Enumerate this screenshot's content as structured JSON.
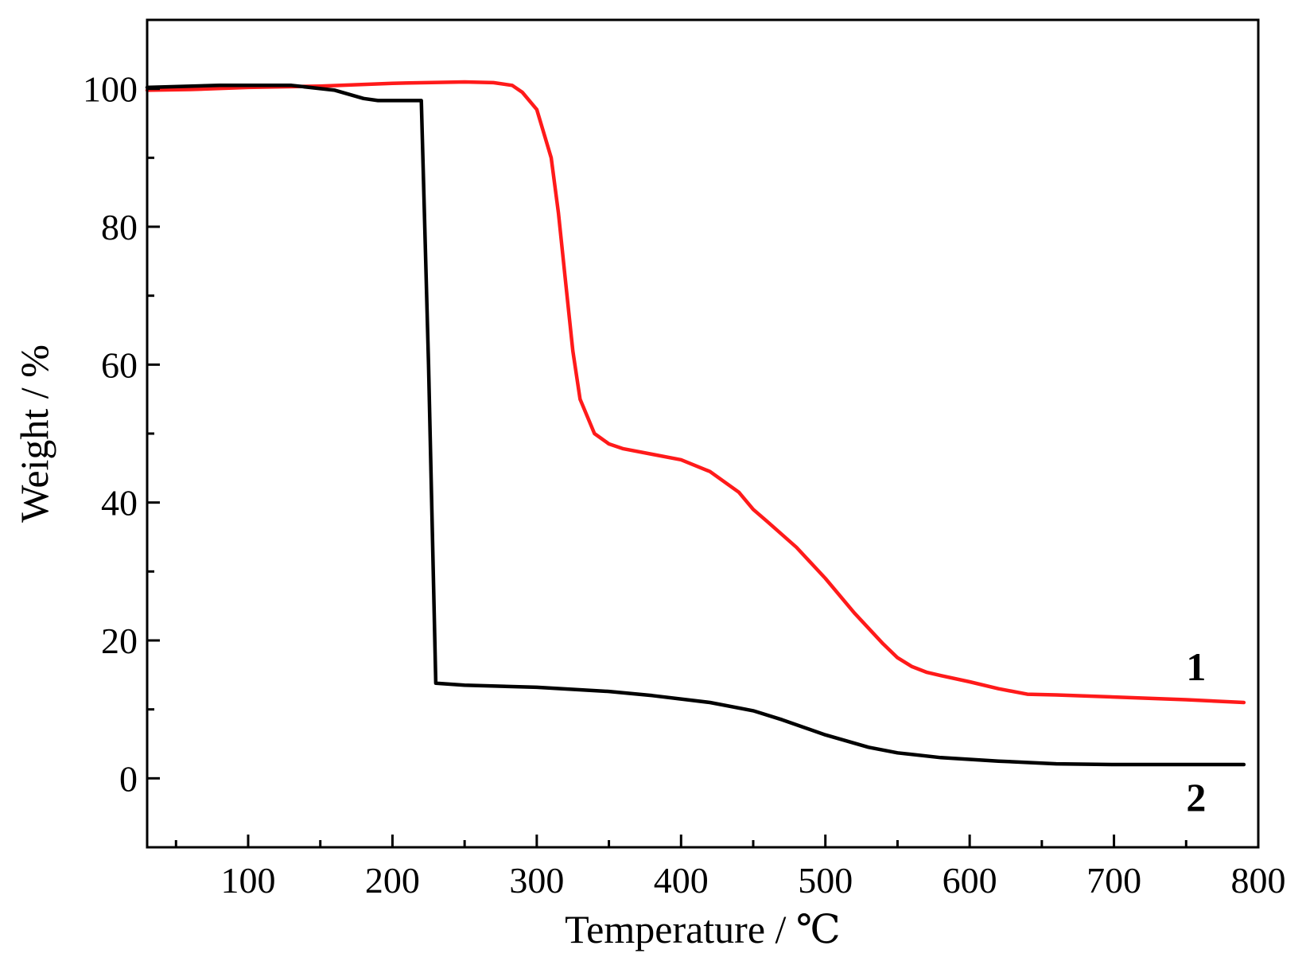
{
  "chart_data": {
    "type": "line",
    "xlabel": "Temperature / ℃",
    "ylabel": "Weight / %",
    "xlim": [
      30,
      800
    ],
    "ylim": [
      -10,
      110
    ],
    "x_ticks": [
      100,
      200,
      300,
      400,
      500,
      600,
      700,
      800
    ],
    "y_ticks": [
      0,
      20,
      40,
      60,
      80,
      100
    ],
    "grid": false,
    "series": [
      {
        "name": "1",
        "color": "#ff1a1a",
        "points": [
          [
            30,
            99.8
          ],
          [
            60,
            99.9
          ],
          [
            100,
            100.2
          ],
          [
            150,
            100.4
          ],
          [
            200,
            100.8
          ],
          [
            250,
            101.0
          ],
          [
            270,
            100.9
          ],
          [
            283,
            100.5
          ],
          [
            290,
            99.5
          ],
          [
            300,
            97
          ],
          [
            310,
            90
          ],
          [
            315,
            82
          ],
          [
            320,
            72
          ],
          [
            325,
            62
          ],
          [
            330,
            55
          ],
          [
            340,
            50
          ],
          [
            350,
            48.5
          ],
          [
            360,
            47.8
          ],
          [
            380,
            47.0
          ],
          [
            400,
            46.2
          ],
          [
            420,
            44.5
          ],
          [
            440,
            41.5
          ],
          [
            450,
            39
          ],
          [
            460,
            37.2
          ],
          [
            480,
            33.5
          ],
          [
            500,
            29
          ],
          [
            520,
            24
          ],
          [
            540,
            19.5
          ],
          [
            550,
            17.5
          ],
          [
            560,
            16.2
          ],
          [
            570,
            15.4
          ],
          [
            580,
            14.9
          ],
          [
            600,
            14
          ],
          [
            620,
            13
          ],
          [
            640,
            12.2
          ],
          [
            660,
            12.1
          ],
          [
            700,
            11.8
          ],
          [
            750,
            11.4
          ],
          [
            790,
            11
          ]
        ]
      },
      {
        "name": "2",
        "color": "#000000",
        "points": [
          [
            30,
            100.2
          ],
          [
            80,
            100.5
          ],
          [
            130,
            100.5
          ],
          [
            160,
            99.8
          ],
          [
            180,
            98.6
          ],
          [
            190,
            98.3
          ],
          [
            200,
            98.3
          ],
          [
            220,
            98.3
          ],
          [
            225,
            60
          ],
          [
            230,
            13.8
          ],
          [
            250,
            13.5
          ],
          [
            300,
            13.2
          ],
          [
            350,
            12.6
          ],
          [
            380,
            12.0
          ],
          [
            420,
            11.0
          ],
          [
            450,
            9.8
          ],
          [
            470,
            8.5
          ],
          [
            500,
            6.3
          ],
          [
            530,
            4.5
          ],
          [
            550,
            3.7
          ],
          [
            580,
            3.0
          ],
          [
            620,
            2.5
          ],
          [
            660,
            2.1
          ],
          [
            700,
            2.0
          ],
          [
            750,
            2.0
          ],
          [
            790,
            2.0
          ]
        ]
      }
    ]
  }
}
